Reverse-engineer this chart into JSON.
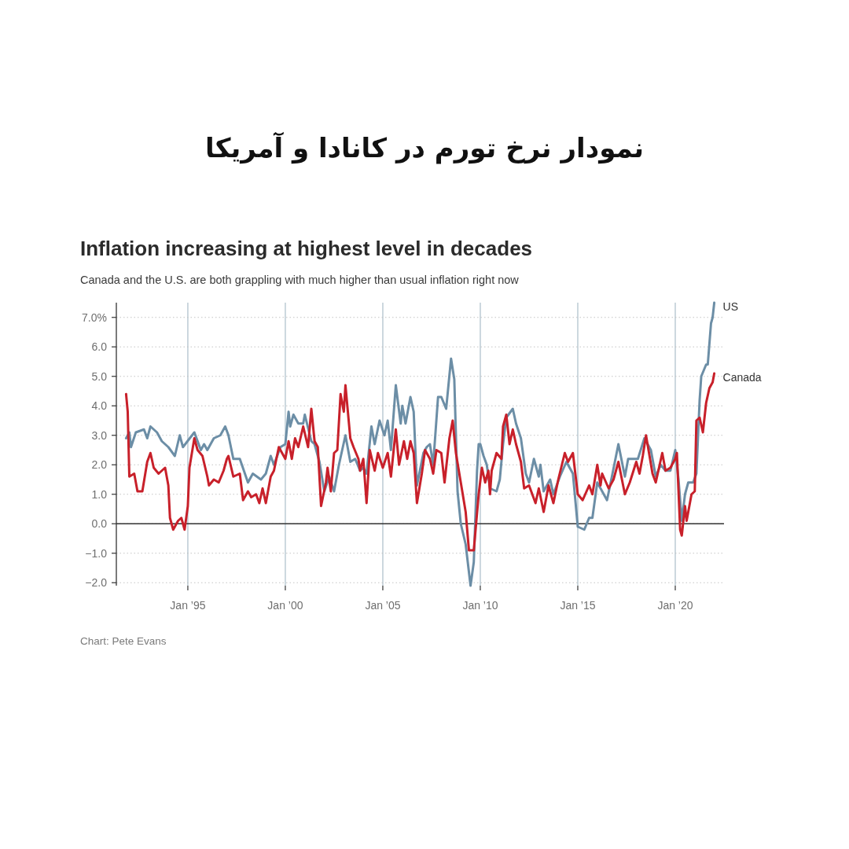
{
  "chart_data": {
    "type": "line",
    "title": "نمودار نرخ تورم در کانادا و آمریکا",
    "subtitle": "Inflation increasing at highest level in decades",
    "annotations": [
      "Canada and the U.S. are both grappling with much higher than usual inflation right now",
      "Chart: Pete Evans"
    ],
    "xlim": [
      "1991-05",
      "2022-07"
    ],
    "ylim": [
      -2.1,
      7.5
    ],
    "xticks": [
      {
        "value": "1995-01",
        "label": "Jan ’95"
      },
      {
        "value": "2000-01",
        "label": "Jan ’00"
      },
      {
        "value": "2005-01",
        "label": "Jan ’05"
      },
      {
        "value": "2010-01",
        "label": "Jan ’10"
      },
      {
        "value": "2015-01",
        "label": "Jan ’15"
      },
      {
        "value": "2020-01",
        "label": "Jan ’20"
      }
    ],
    "yticks": [
      {
        "value": -2,
        "label": "−2.0"
      },
      {
        "value": -1,
        "label": "−1.0"
      },
      {
        "value": 0,
        "label": "0.0"
      },
      {
        "value": 1,
        "label": "1.0"
      },
      {
        "value": 2,
        "label": "2.0"
      },
      {
        "value": 3,
        "label": "3.0"
      },
      {
        "value": 4,
        "label": "4.0"
      },
      {
        "value": 5,
        "label": "5.0"
      },
      {
        "value": 6,
        "label": "6.0"
      },
      {
        "value": 7,
        "label": "7.0%"
      }
    ],
    "grid": true,
    "ref_lines": [
      {
        "axis": "y",
        "value": 0,
        "color": "#333333"
      }
    ],
    "series": [
      {
        "name": "US",
        "color": "#6c8ea6",
        "x": [
          "1991-11",
          "1992-01",
          "1992-02",
          "1992-05",
          "1992-10",
          "1992-12",
          "1993-02",
          "1993-06",
          "1993-09",
          "1994-01",
          "1994-05",
          "1994-08",
          "1994-10",
          "1995-05",
          "1995-09",
          "1995-11",
          "1996-01",
          "1996-05",
          "1996-09",
          "1996-12",
          "1997-02",
          "1997-05",
          "1997-09",
          "1998-02",
          "1998-05",
          "1998-10",
          "1999-01",
          "1999-04",
          "1999-06",
          "1999-10",
          "2000-01",
          "2000-03",
          "2000-04",
          "2000-06",
          "2000-09",
          "2000-12",
          "2001-01",
          "2001-05",
          "2001-07",
          "2001-10",
          "2002-01",
          "2002-04",
          "2002-07",
          "2002-10",
          "2003-02",
          "2003-05",
          "2003-08",
          "2003-11",
          "2004-01",
          "2004-03",
          "2004-06",
          "2004-08",
          "2004-11",
          "2005-02",
          "2005-04",
          "2005-06",
          "2005-09",
          "2005-12",
          "2006-01",
          "2006-03",
          "2006-06",
          "2006-08",
          "2006-10",
          "2007-02",
          "2007-04",
          "2007-06",
          "2007-08",
          "2007-11",
          "2008-01",
          "2008-04",
          "2008-07",
          "2008-09",
          "2008-11",
          "2009-01",
          "2009-04",
          "2009-07",
          "2009-09",
          "2009-11",
          "2009-12",
          "2010-01",
          "2010-03",
          "2010-05",
          "2010-07",
          "2010-11",
          "2011-01",
          "2011-03",
          "2011-05",
          "2011-09",
          "2011-11",
          "2012-02",
          "2012-05",
          "2012-07",
          "2012-10",
          "2013-01",
          "2013-02",
          "2013-04",
          "2013-08",
          "2013-10",
          "2014-02",
          "2014-06",
          "2014-10",
          "2015-01",
          "2015-05",
          "2015-08",
          "2015-10",
          "2016-01",
          "2016-04",
          "2016-07",
          "2016-10",
          "2017-02",
          "2017-06",
          "2017-08",
          "2017-11",
          "2018-02",
          "2018-06",
          "2018-10",
          "2019-01",
          "2019-04",
          "2019-07",
          "2019-10",
          "2020-01",
          "2020-03",
          "2020-05",
          "2020-07",
          "2020-09",
          "2020-12",
          "2021-02",
          "2021-04",
          "2021-05",
          "2021-08",
          "2021-09",
          "2021-11",
          "2021-12",
          "2022-01"
        ],
        "values": [
          2.9,
          3.1,
          2.6,
          3.1,
          3.2,
          2.9,
          3.3,
          3.1,
          2.8,
          2.6,
          2.3,
          3.0,
          2.6,
          3.1,
          2.5,
          2.7,
          2.5,
          2.9,
          3.0,
          3.3,
          3.0,
          2.2,
          2.2,
          1.4,
          1.7,
          1.5,
          1.7,
          2.3,
          2.0,
          2.6,
          2.7,
          3.8,
          3.3,
          3.7,
          3.4,
          3.4,
          3.7,
          2.8,
          2.7,
          2.1,
          1.1,
          1.6,
          1.1,
          2.0,
          3.0,
          2.1,
          2.2,
          1.8,
          1.9,
          1.7,
          3.3,
          2.7,
          3.5,
          3.0,
          3.5,
          2.5,
          4.7,
          3.4,
          4.0,
          3.4,
          4.3,
          3.8,
          1.3,
          2.4,
          2.6,
          2.7,
          2.0,
          4.3,
          4.3,
          3.9,
          5.6,
          4.9,
          1.1,
          0.0,
          -0.7,
          -2.1,
          -1.3,
          1.8,
          2.7,
          2.7,
          2.3,
          2.0,
          1.2,
          1.1,
          1.5,
          2.7,
          3.6,
          3.9,
          3.4,
          2.9,
          1.7,
          1.4,
          2.2,
          1.6,
          2.0,
          1.1,
          1.5,
          1.0,
          1.6,
          2.1,
          1.7,
          -0.1,
          -0.2,
          0.2,
          0.2,
          1.4,
          1.1,
          0.8,
          1.6,
          2.7,
          1.6,
          2.2,
          2.2,
          2.2,
          2.9,
          2.5,
          1.6,
          2.0,
          1.8,
          1.8,
          2.5,
          1.5,
          0.1,
          1.0,
          1.4,
          1.4,
          1.7,
          4.2,
          5.0,
          5.4,
          5.4,
          6.8,
          7.0,
          7.5
        ]
      },
      {
        "name": "Canada",
        "color": "#c8202a",
        "x": [
          "1991-11",
          "1991-12",
          "1992-01",
          "1992-04",
          "1992-06",
          "1992-09",
          "1992-12",
          "1993-02",
          "1993-04",
          "1993-07",
          "1993-11",
          "1994-01",
          "1994-02",
          "1994-04",
          "1994-07",
          "1994-09",
          "1994-11",
          "1995-01",
          "1995-02",
          "1995-05",
          "1995-07",
          "1995-10",
          "1996-01",
          "1996-02",
          "1996-05",
          "1996-08",
          "1996-11",
          "1997-01",
          "1997-02",
          "1997-05",
          "1997-09",
          "1997-11",
          "1998-02",
          "1998-04",
          "1998-07",
          "1998-09",
          "1998-11",
          "1999-01",
          "1999-04",
          "1999-06",
          "1999-09",
          "2000-01",
          "2000-03",
          "2000-05",
          "2000-07",
          "2000-09",
          "2000-12",
          "2001-03",
          "2001-05",
          "2001-07",
          "2001-09",
          "2001-11",
          "2002-02",
          "2002-03",
          "2002-05",
          "2002-07",
          "2002-09",
          "2002-11",
          "2003-01",
          "2003-02",
          "2003-05",
          "2003-07",
          "2003-10",
          "2003-11",
          "2004-01",
          "2004-03",
          "2004-05",
          "2004-08",
          "2004-10",
          "2005-01",
          "2005-04",
          "2005-06",
          "2005-09",
          "2005-11",
          "2006-02",
          "2006-04",
          "2006-06",
          "2006-08",
          "2006-10",
          "2007-01",
          "2007-03",
          "2007-06",
          "2007-08",
          "2007-10",
          "2008-01",
          "2008-03",
          "2008-06",
          "2008-08",
          "2008-10",
          "2009-01",
          "2009-04",
          "2009-06",
          "2009-09",
          "2009-12",
          "2010-02",
          "2010-04",
          "2010-06",
          "2010-07",
          "2010-08",
          "2010-11",
          "2011-02",
          "2011-03",
          "2011-05",
          "2011-07",
          "2011-09",
          "2011-11",
          "2012-02",
          "2012-04",
          "2012-07",
          "2012-11",
          "2013-01",
          "2013-04",
          "2013-07",
          "2013-10",
          "2014-01",
          "2014-05",
          "2014-07",
          "2014-10",
          "2015-01",
          "2015-04",
          "2015-08",
          "2015-10",
          "2016-01",
          "2016-03",
          "2016-04",
          "2016-08",
          "2016-11",
          "2017-02",
          "2017-06",
          "2017-09",
          "2018-01",
          "2018-03",
          "2018-05",
          "2018-07",
          "2018-11",
          "2019-01",
          "2019-05",
          "2019-07",
          "2019-10",
          "2020-01",
          "2020-02",
          "2020-04",
          "2020-05",
          "2020-07",
          "2020-08",
          "2020-11",
          "2021-01",
          "2021-02",
          "2021-04",
          "2021-06",
          "2021-08",
          "2021-10",
          "2021-12",
          "2022-01"
        ],
        "values": [
          4.4,
          3.8,
          1.6,
          1.7,
          1.1,
          1.1,
          2.1,
          2.4,
          1.9,
          1.7,
          1.9,
          1.3,
          0.2,
          -0.2,
          0.1,
          0.2,
          -0.2,
          0.6,
          1.9,
          2.9,
          2.5,
          2.3,
          1.6,
          1.3,
          1.5,
          1.4,
          1.8,
          2.2,
          2.3,
          1.6,
          1.7,
          0.8,
          1.1,
          0.9,
          1.0,
          0.7,
          1.2,
          0.7,
          1.6,
          1.8,
          2.6,
          2.2,
          2.8,
          2.2,
          2.9,
          2.6,
          3.3,
          2.6,
          3.9,
          2.8,
          2.6,
          0.6,
          1.4,
          1.9,
          1.1,
          2.4,
          2.5,
          4.4,
          3.8,
          4.7,
          2.9,
          2.6,
          2.2,
          1.8,
          2.2,
          0.7,
          2.5,
          1.8,
          2.4,
          1.9,
          2.4,
          1.6,
          3.2,
          2.0,
          2.8,
          2.2,
          2.8,
          2.4,
          0.7,
          1.7,
          2.5,
          2.2,
          1.7,
          2.5,
          2.4,
          1.4,
          2.9,
          3.5,
          2.4,
          1.4,
          0.4,
          -0.9,
          -0.9,
          1.0,
          1.9,
          1.4,
          1.8,
          1.0,
          1.8,
          2.4,
          2.2,
          3.3,
          3.7,
          2.7,
          3.2,
          2.7,
          2.1,
          1.2,
          1.3,
          0.7,
          1.2,
          0.4,
          1.3,
          0.7,
          1.5,
          2.4,
          2.1,
          2.4,
          1.0,
          0.8,
          1.3,
          1.0,
          2.0,
          1.3,
          1.7,
          1.2,
          1.5,
          2.1,
          1.0,
          1.4,
          2.1,
          1.7,
          2.3,
          3.0,
          1.7,
          1.4,
          2.4,
          1.8,
          1.9,
          2.2,
          2.4,
          -0.2,
          -0.4,
          0.6,
          0.1,
          1.0,
          1.1,
          3.5,
          3.6,
          3.1,
          4.1,
          4.6,
          4.8,
          5.1
        ]
      }
    ]
  }
}
